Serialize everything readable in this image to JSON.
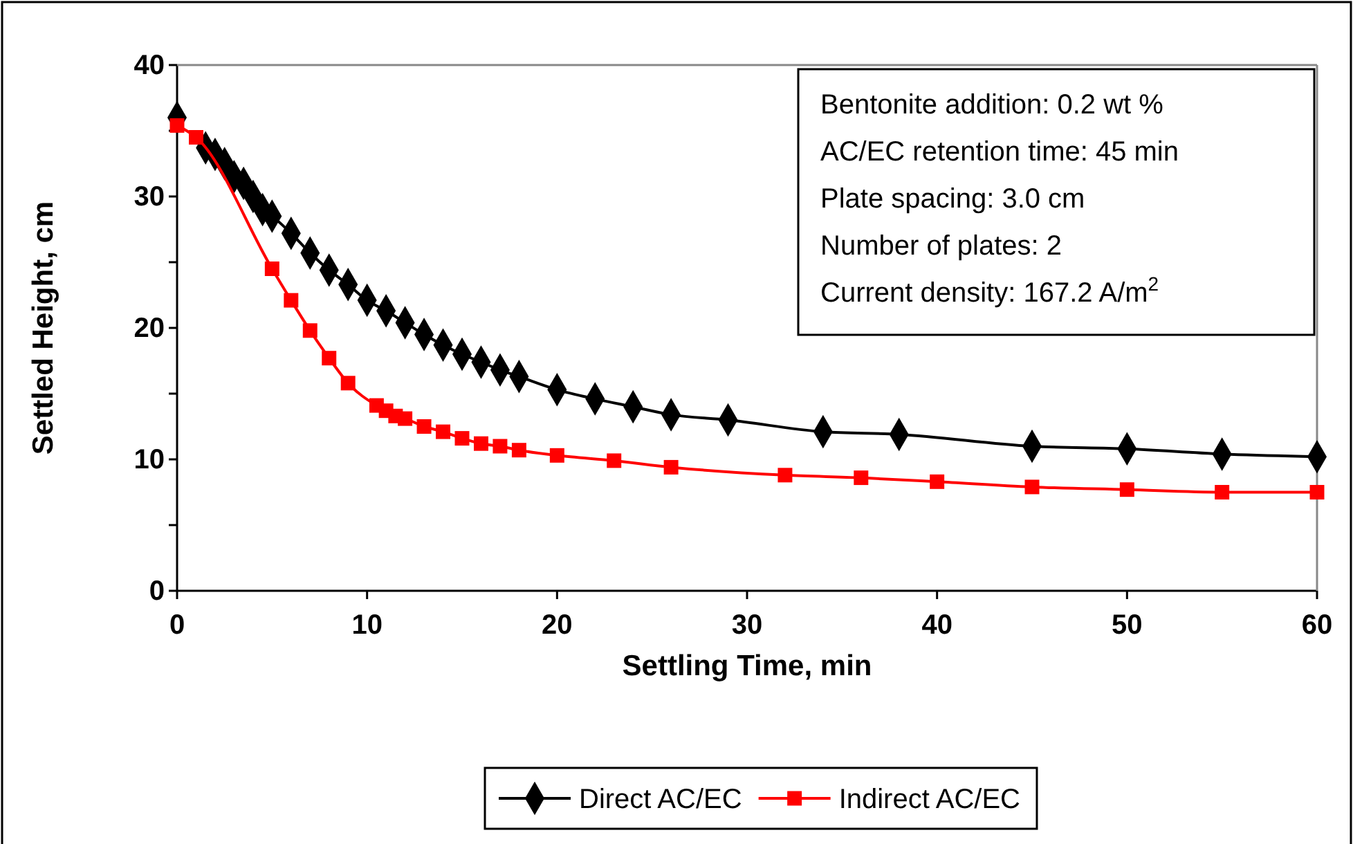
{
  "chart_data": {
    "type": "line",
    "xlabel": "Settling Time, min",
    "ylabel": "Settled Height, cm",
    "xlim": [
      0,
      60
    ],
    "xticks": [
      0,
      10,
      20,
      30,
      40,
      50,
      60
    ],
    "ylim": [
      0,
      40
    ],
    "yticks": [
      0,
      {
        "value": 5,
        "label": null
      },
      10,
      {
        "value": 15,
        "label": null
      },
      20,
      {
        "value": 25,
        "label": null
      },
      30,
      {
        "value": 35,
        "label": null
      },
      40
    ],
    "grid": false,
    "legend": "bottom",
    "line_style": "solid",
    "annotations": [
      "Bentonite addition: 0.2 wt %",
      "AC/EC retention time: 45 min",
      "Plate spacing: 3.0 cm",
      "Number of plates: 2",
      "Current density: 167.2 A/m$^{2}$"
    ],
    "series": [
      {
        "name": "Direct AC/EC",
        "color": "#000000",
        "marker": "diamond",
        "x": [
          0,
          1,
          1.5,
          2,
          2.5,
          3,
          3.5,
          4,
          4.5,
          5,
          6,
          7,
          8,
          9,
          10,
          11,
          12,
          13,
          14,
          15,
          16,
          17,
          18,
          20,
          22,
          24,
          26,
          29,
          34,
          38,
          45,
          50,
          55,
          60
        ],
        "values": [
          36,
          null,
          33.7,
          33.2,
          32.5,
          31.5,
          31,
          30,
          29,
          28.5,
          27.2,
          25.7,
          24.4,
          23.3,
          22.1,
          21.3,
          20.4,
          19.5,
          18.7,
          18,
          17.4,
          16.8,
          16.3,
          15.3,
          14.6,
          14,
          13.4,
          13,
          12.1,
          11.9,
          11,
          10.8,
          10.4,
          10.2
        ]
      },
      {
        "name": "Indirect AC/EC",
        "color": "#ff0000",
        "marker": "square",
        "x": [
          0,
          1,
          5,
          6,
          7,
          8,
          9,
          10.5,
          11,
          11.5,
          12,
          13,
          14,
          15,
          16,
          17,
          18,
          20,
          23,
          26,
          32,
          36,
          40,
          45,
          50,
          55,
          60
        ],
        "values": [
          35.4,
          34.5,
          24.5,
          22.1,
          19.8,
          17.7,
          15.8,
          14.1,
          13.7,
          13.3,
          13.1,
          12.5,
          12.1,
          11.6,
          11.2,
          11,
          10.7,
          10.3,
          9.9,
          9.4,
          8.8,
          8.6,
          8.3,
          7.9,
          7.7,
          7.5,
          7.5
        ]
      }
    ]
  }
}
